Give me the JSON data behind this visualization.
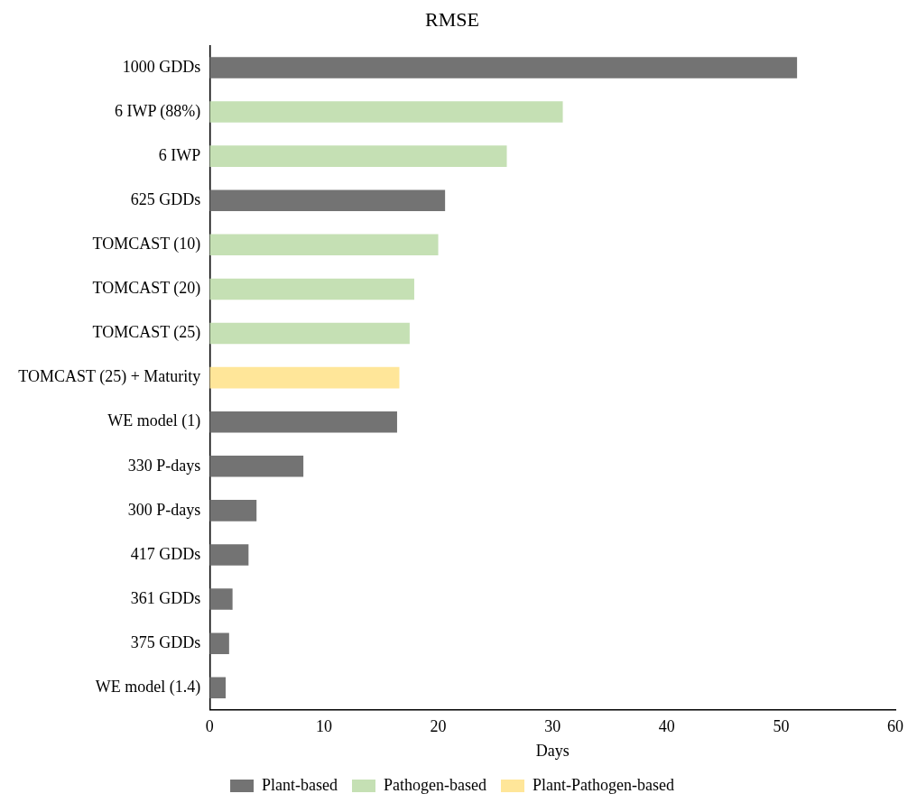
{
  "chart_data": {
    "type": "bar",
    "orientation": "horizontal",
    "title": "RMSE",
    "xlabel": "Days",
    "categories": [
      "1000 GDDs",
      "6 IWP (88%)",
      "6 IWP",
      "625 GDDs",
      "TOMCAST (10)",
      "TOMCAST (20)",
      "TOMCAST (25)",
      "TOMCAST (25) + Maturity",
      "WE model (1)",
      "330 P-days",
      "300 P-days",
      "417 GDDs",
      "361 GDDs",
      "375 GDDs",
      "WE model (1.4)"
    ],
    "series": [
      {
        "name": "Plant-based",
        "color": "#737373",
        "values": [
          51.4,
          null,
          null,
          20.6,
          null,
          null,
          null,
          null,
          16.4,
          8.2,
          4.1,
          3.4,
          2.0,
          1.7,
          1.4
        ]
      },
      {
        "name": "Pathogen-based",
        "color": "#c5e0b4",
        "values": [
          null,
          30.9,
          26.0,
          null,
          20.0,
          17.9,
          17.5,
          null,
          null,
          null,
          null,
          null,
          null,
          null,
          null
        ]
      },
      {
        "name": "Plant-Pathogen-based",
        "color": "#ffe699",
        "values": [
          null,
          null,
          null,
          null,
          null,
          null,
          null,
          16.6,
          null,
          null,
          null,
          null,
          null,
          null,
          null
        ]
      }
    ],
    "xlim": [
      0,
      60
    ],
    "xticks": [
      0,
      10,
      20,
      30,
      40,
      50,
      60
    ],
    "grid": false,
    "legend": "bottom"
  }
}
